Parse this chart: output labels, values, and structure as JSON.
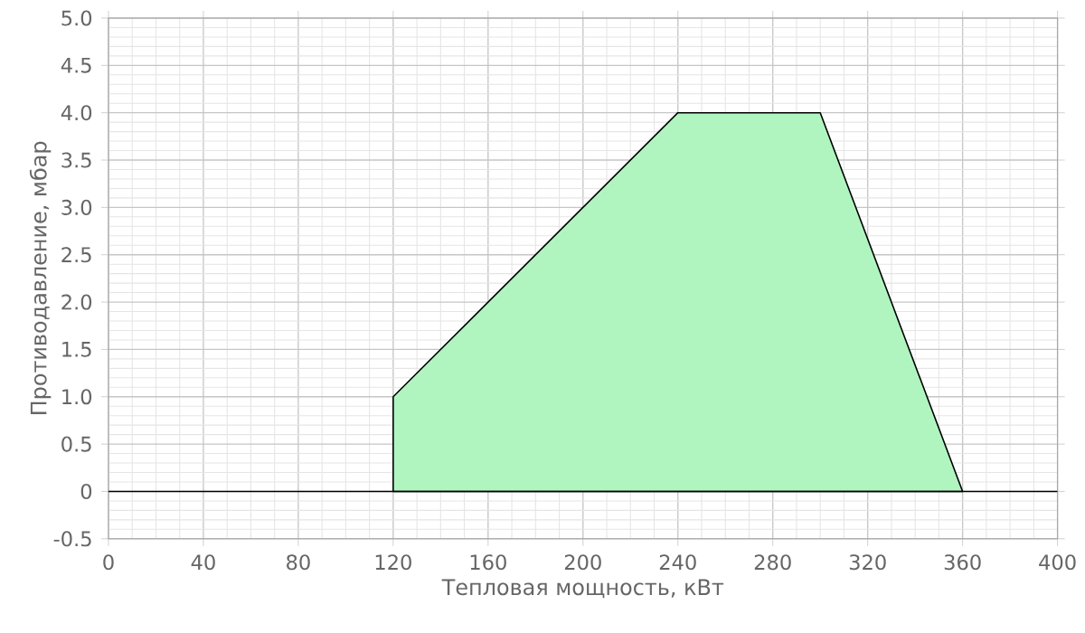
{
  "chart_data": {
    "type": "area",
    "xlabel": "Тепловая мощность, кВт",
    "ylabel": "Противодавление, мбар",
    "x": [
      120,
      120,
      240,
      300,
      360
    ],
    "values": [
      0,
      1,
      4,
      4,
      0
    ],
    "color": "#b0f5c0",
    "xlim": [
      0,
      400
    ],
    "ylim": [
      -0.5,
      5
    ],
    "xticks": [
      0,
      40,
      80,
      120,
      160,
      200,
      240,
      280,
      320,
      360,
      400
    ],
    "yticks": [
      {
        "value": -0.5,
        "label": "-0.5"
      },
      {
        "value": 0,
        "label": "0"
      },
      {
        "value": 0.5,
        "label": "0.5"
      },
      {
        "value": 1,
        "label": "1.0"
      },
      {
        "value": 1.5,
        "label": "1.5"
      },
      {
        "value": 2,
        "label": "2.0"
      },
      {
        "value": 2.5,
        "label": "2.5"
      },
      {
        "value": 3,
        "label": "3.0"
      },
      {
        "value": 3.5,
        "label": "3.5"
      },
      {
        "value": 4,
        "label": "4.0"
      },
      {
        "value": 4.5,
        "label": "4.5"
      },
      {
        "value": 5,
        "label": "5.0"
      }
    ],
    "ref_lines": [
      {
        "axis": "y",
        "value": 0,
        "color": "#000000"
      }
    ],
    "grid": true
  }
}
